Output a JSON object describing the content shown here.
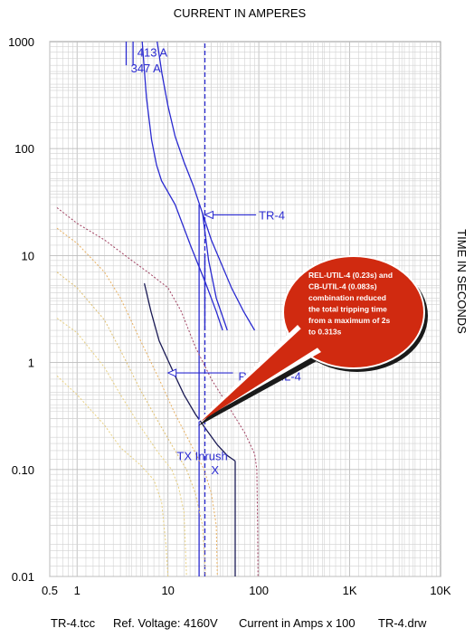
{
  "chart_data": {
    "type": "line",
    "title": "CURRENT IN AMPERES",
    "xlabel": "CURRENT IN AMPERES",
    "ylabel": "TIME IN SECONDS",
    "x_scale": "log",
    "y_scale": "log",
    "xlim": [
      0.5,
      10000
    ],
    "ylim": [
      0.01,
      1000
    ],
    "x_ticks": [
      {
        "v": 0.5,
        "label": "0.5"
      },
      {
        "v": 1,
        "label": "1"
      },
      {
        "v": 10,
        "label": "10"
      },
      {
        "v": 100,
        "label": "100"
      },
      {
        "v": 1000,
        "label": "1K"
      },
      {
        "v": 10000,
        "label": "10K"
      }
    ],
    "y_ticks": [
      {
        "v": 0.01,
        "label": "0.01"
      },
      {
        "v": 0.1,
        "label": "0.10"
      },
      {
        "v": 1,
        "label": "1"
      },
      {
        "v": 10,
        "label": "10"
      },
      {
        "v": 100,
        "label": "100"
      },
      {
        "v": 1000,
        "label": "1000"
      }
    ],
    "grid": true,
    "series": [
      {
        "id": "tr4-damage-left",
        "color": "#2a2ad0",
        "dash": "",
        "points": [
          [
            5.2,
            1000
          ],
          [
            5.8,
            300
          ],
          [
            6.6,
            120
          ],
          [
            7.5,
            70
          ],
          [
            8.5,
            50
          ],
          [
            12,
            30
          ],
          [
            18,
            12
          ],
          [
            26,
            5.5
          ],
          [
            34,
            3
          ],
          [
            40,
            2
          ]
        ]
      },
      {
        "id": "tr4-damage-right",
        "color": "#2a2ad0",
        "dash": "",
        "points": [
          [
            7.6,
            1000
          ],
          [
            8.6,
            500
          ],
          [
            10,
            250
          ],
          [
            12,
            130
          ],
          [
            15,
            75
          ],
          [
            19,
            45
          ],
          [
            30,
            14
          ],
          [
            50,
            5
          ],
          [
            68,
            3
          ],
          [
            90,
            2
          ]
        ]
      },
      {
        "id": "tr4-inner",
        "color": "#2a2ad0",
        "dash": "",
        "points": [
          [
            24,
            25
          ],
          [
            28,
            9
          ],
          [
            34,
            4
          ],
          [
            45,
            2
          ]
        ]
      },
      {
        "id": "tr4-vertical-a",
        "color": "#2a2ad0",
        "dash": "",
        "points": [
          [
            4.13,
            1000
          ],
          [
            4.13,
            600
          ]
        ]
      },
      {
        "id": "tr4-vertical-b",
        "color": "#2a2ad0",
        "dash": "",
        "points": [
          [
            3.47,
            1000
          ],
          [
            3.47,
            600
          ]
        ]
      },
      {
        "id": "rel-util-4",
        "color": "#1a1a55",
        "dash": "",
        "points": [
          [
            5.5,
            5.5
          ],
          [
            6.5,
            3
          ],
          [
            8,
            1.6
          ],
          [
            10,
            1.05
          ],
          [
            12,
            0.75
          ],
          [
            15,
            0.5
          ],
          [
            20,
            0.33
          ],
          [
            26,
            0.24
          ],
          [
            35,
            0.17
          ],
          [
            45,
            0.135
          ],
          [
            55,
            0.12
          ]
        ]
      },
      {
        "id": "rel-util-4-vert",
        "color": "#1a1a55",
        "dash": "",
        "points": [
          [
            55,
            0.12
          ],
          [
            55,
            0.01
          ]
        ]
      },
      {
        "id": "tr4-inrush-line",
        "color": "#2a2ad0",
        "dash": "",
        "points": [
          [
            22,
            0.01
          ],
          [
            22,
            30
          ]
        ]
      },
      {
        "id": "tr4-dashed",
        "color": "#2a2ad0",
        "dash": "5,3",
        "points": [
          [
            25.5,
            0.01
          ],
          [
            25.5,
            1000
          ]
        ]
      },
      {
        "id": "tr4-inrush-step",
        "color": "#2a2ad0",
        "dash": "",
        "points": [
          [
            25.5,
            2
          ],
          [
            25.5,
            10
          ],
          [
            25.5,
            4
          ],
          [
            26,
            4
          ]
        ]
      },
      {
        "id": "maroon-dotted",
        "color": "#a04060",
        "dash": "2,2",
        "points": [
          [
            0.6,
            28
          ],
          [
            1,
            20
          ],
          [
            2,
            14
          ],
          [
            4,
            9
          ],
          [
            6,
            7
          ],
          [
            10,
            5
          ],
          [
            14,
            3
          ],
          [
            20,
            1.4
          ],
          [
            30,
            0.7
          ],
          [
            50,
            0.35
          ],
          [
            70,
            0.22
          ],
          [
            90,
            0.14
          ],
          [
            95,
            0.1
          ],
          [
            97,
            0.03
          ],
          [
            98,
            0.01
          ]
        ]
      },
      {
        "id": "orange-dotted-1",
        "color": "#e8b060",
        "dash": "2,2",
        "points": [
          [
            0.6,
            18
          ],
          [
            1,
            13
          ],
          [
            2,
            7
          ],
          [
            3,
            4
          ],
          [
            5,
            1.6
          ],
          [
            8,
            0.7
          ],
          [
            12,
            0.33
          ],
          [
            18,
            0.17
          ],
          [
            25,
            0.1
          ],
          [
            30,
            0.06
          ],
          [
            34,
            0.03
          ],
          [
            35,
            0.01
          ]
        ]
      },
      {
        "id": "orange-dotted-2",
        "color": "#e0c070",
        "dash": "2,2",
        "points": [
          [
            0.6,
            7
          ],
          [
            1,
            5
          ],
          [
            2,
            2.5
          ],
          [
            3,
            1.3
          ],
          [
            5,
            0.55
          ],
          [
            8,
            0.27
          ],
          [
            12,
            0.15
          ],
          [
            16,
            0.1
          ],
          [
            20,
            0.06
          ],
          [
            24,
            0.03
          ],
          [
            26,
            0.01
          ]
        ]
      },
      {
        "id": "orange-dotted-3",
        "color": "#e8d080",
        "dash": "2,2",
        "points": [
          [
            0.6,
            2.6
          ],
          [
            1,
            1.9
          ],
          [
            2,
            0.9
          ],
          [
            3,
            0.5
          ],
          [
            5,
            0.25
          ],
          [
            8,
            0.14
          ],
          [
            11,
            0.1
          ],
          [
            13,
            0.07
          ],
          [
            15,
            0.04
          ],
          [
            16,
            0.01
          ]
        ]
      },
      {
        "id": "orange-dotted-4",
        "color": "#e8d080",
        "dash": "2,2",
        "points": [
          [
            0.6,
            0.75
          ],
          [
            1,
            0.5
          ],
          [
            2,
            0.26
          ],
          [
            3,
            0.16
          ],
          [
            5,
            0.11
          ],
          [
            7,
            0.08
          ],
          [
            8.5,
            0.05
          ],
          [
            9.5,
            0.02
          ],
          [
            10,
            0.01
          ]
        ]
      }
    ],
    "labels": [
      {
        "id": "lbl-413a",
        "text": "413 A",
        "x": 4.6,
        "y": 800
      },
      {
        "id": "lbl-347a",
        "text": "347 A",
        "x": 3.9,
        "y": 570
      },
      {
        "id": "lbl-tr4",
        "text": "TR-4",
        "x": 100,
        "y": 24
      },
      {
        "id": "lbl-rel-util-4",
        "text": "REL-UTIL-4",
        "x": 130,
        "y": 0.75
      },
      {
        "id": "lbl-tx-inrush",
        "text": "TX Inrush",
        "x": 12.5,
        "y": 0.135
      }
    ],
    "markers": [
      {
        "id": "tx-inrush-marker",
        "text": "X",
        "x": 33,
        "y": 0.1
      }
    ],
    "callout": {
      "tip": [
        20,
        0.27
      ],
      "lines": [
        "REL-UTIL-4 (0.23s) and",
        "CB-UTIL-4 (0.083s)",
        "combination reduced",
        "the total tripping time",
        "from a maximum of 2s",
        "to 0.313s"
      ],
      "fill": "#d02a10"
    }
  },
  "footer": {
    "tcc_file": "TR-4.tcc",
    "ref_voltage": "Ref. Voltage: 4160V",
    "current_note": "Current in Amps x 100",
    "drw_file": "TR-4.drw"
  }
}
